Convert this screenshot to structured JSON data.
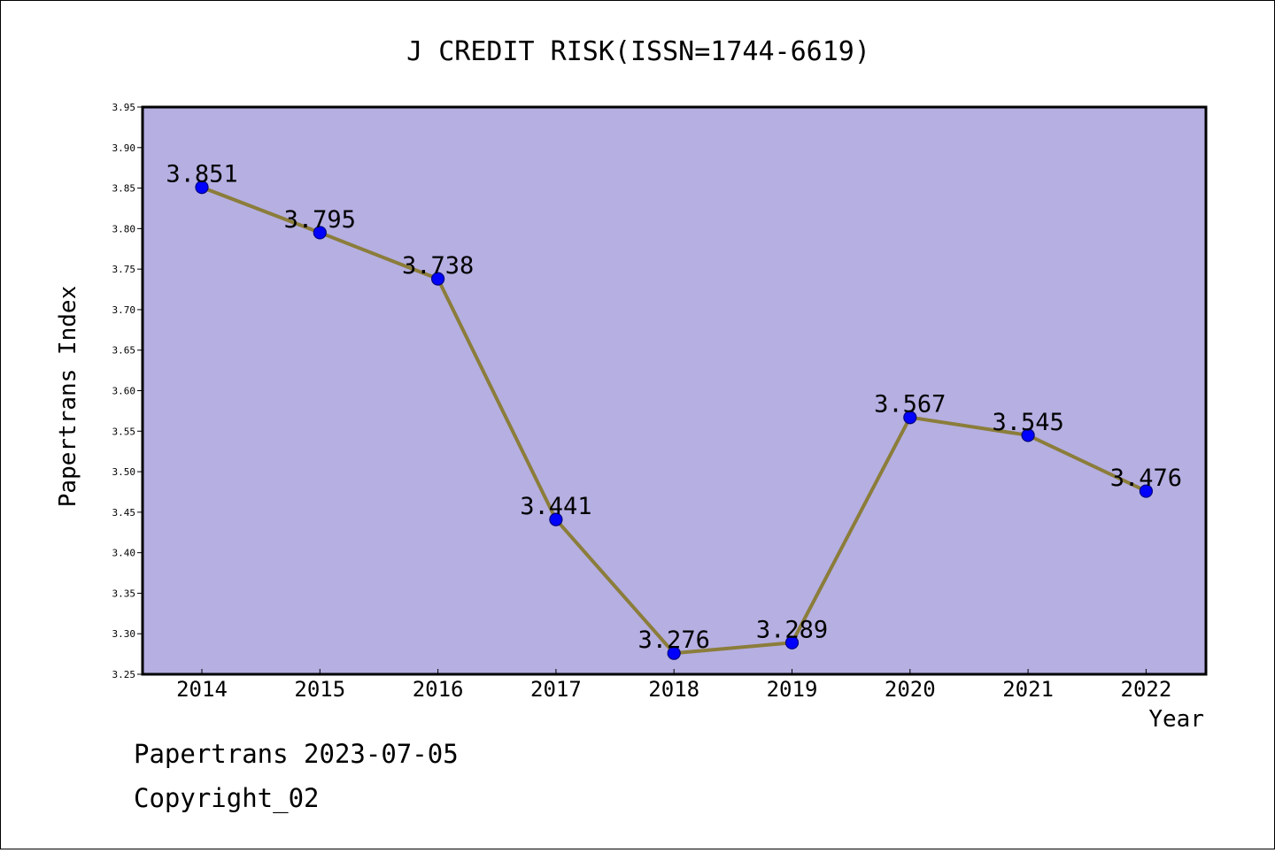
{
  "chart_data": {
    "type": "line",
    "title": "J CREDIT RISK(ISSN=1744-6619)",
    "xlabel": "Year",
    "ylabel": "Papertrans Index",
    "categories": [
      "2014",
      "2015",
      "2016",
      "2017",
      "2018",
      "2019",
      "2020",
      "2021",
      "2022"
    ],
    "values": [
      3.851,
      3.795,
      3.738,
      3.441,
      3.276,
      3.289,
      3.567,
      3.545,
      3.476
    ],
    "data_labels": [
      "3.851",
      "3.795",
      "3.738",
      "3.441",
      "3.276",
      "3.289",
      "3.567",
      "3.545",
      "3.476"
    ],
    "ylim": [
      3.25,
      3.95
    ],
    "yticks": [
      "3.25",
      "3.30",
      "3.35",
      "3.40",
      "3.45",
      "3.50",
      "3.55",
      "3.60",
      "3.65",
      "3.70",
      "3.75",
      "3.80",
      "3.85",
      "3.90",
      "3.95"
    ],
    "grid": false,
    "legend": "none",
    "colors": {
      "plot_background": "#b5afe2",
      "line": "#8b7d3a",
      "marker_fill": "#0000ff",
      "marker_edge": "#000080"
    }
  },
  "footer": {
    "line1": "Papertrans 2023-07-05",
    "line2": "Copyright_02"
  }
}
